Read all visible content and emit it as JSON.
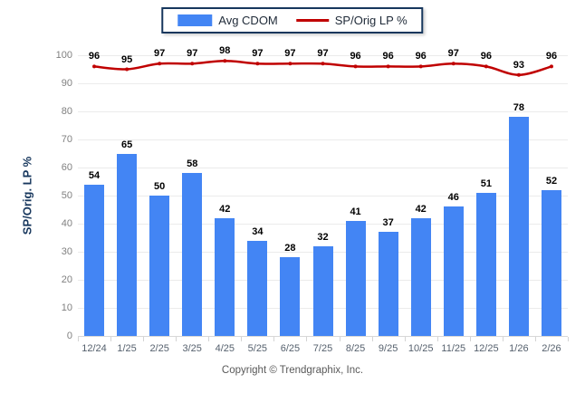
{
  "legend": {
    "items": [
      {
        "label": "Avg CDOM",
        "swatch": "bar-swatch-icon"
      },
      {
        "label": "SP/Orig LP %",
        "swatch": "line-swatch-icon"
      }
    ]
  },
  "y_axis_title": "SP/Orig. LP %",
  "footer_text": "Copyright © Trendgraphix, Inc.",
  "colors": {
    "bar": "#4385F4",
    "line": "#C00000",
    "grid": "#EBEBEB",
    "axis": "#D8D8D8",
    "y_tick_text": "#808080",
    "x_tick_text": "#56616E",
    "value_label": "#000000",
    "legend_border": "#17375D"
  },
  "chart_data": {
    "type": "bar",
    "categories": [
      "12/24",
      "1/25",
      "2/25",
      "3/25",
      "4/25",
      "5/25",
      "6/25",
      "7/25",
      "8/25",
      "9/25",
      "10/25",
      "11/25",
      "12/25",
      "1/26",
      "2/26"
    ],
    "series": [
      {
        "name": "Avg CDOM",
        "type": "bar",
        "color": "#4385F4",
        "values": [
          54,
          65,
          50,
          58,
          42,
          34,
          28,
          32,
          41,
          37,
          42,
          46,
          51,
          78,
          52
        ]
      },
      {
        "name": "SP/Orig LP %",
        "type": "line",
        "color": "#C00000",
        "values": [
          96,
          95,
          97,
          97,
          98,
          97,
          97,
          97,
          96,
          96,
          96,
          97,
          96,
          93,
          96
        ]
      }
    ],
    "title": "",
    "xlabel": "",
    "ylabel": "SP/Orig. LP %",
    "ylim": [
      0,
      100
    ],
    "ytick_step": 10,
    "grid": true,
    "legend_position": "top-center",
    "data_labels": true
  }
}
